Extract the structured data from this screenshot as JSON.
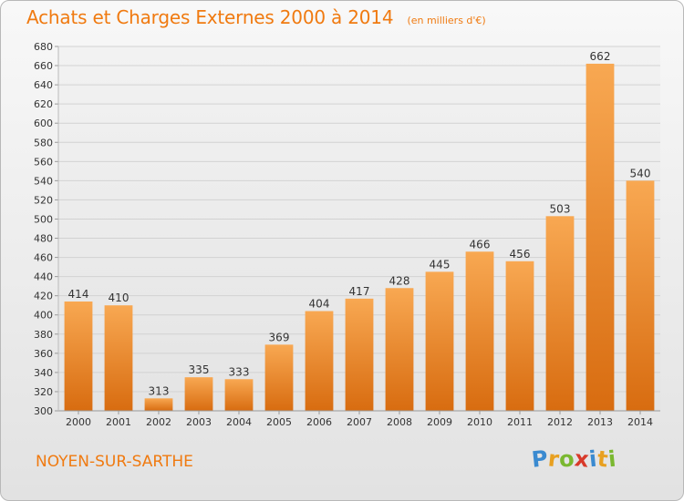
{
  "chart_data": {
    "type": "bar",
    "title": "Achats et Charges Externes 2000 à 2014",
    "subtitle": "(en milliers d'€)",
    "categories": [
      "2000",
      "2001",
      "2002",
      "2003",
      "2004",
      "2005",
      "2006",
      "2007",
      "2008",
      "2009",
      "2010",
      "2011",
      "2012",
      "2013",
      "2014"
    ],
    "values": [
      414,
      410,
      313,
      335,
      333,
      369,
      404,
      417,
      428,
      445,
      466,
      456,
      503,
      662,
      540
    ],
    "ylim": [
      300,
      680
    ],
    "yticks": [
      300,
      320,
      340,
      360,
      380,
      400,
      420,
      440,
      460,
      480,
      500,
      520,
      540,
      560,
      580,
      600,
      620,
      640,
      660,
      680
    ],
    "xlabel": "",
    "ylabel": "",
    "grid": true,
    "bar_color": "#f08c2a"
  },
  "footer": {
    "place": "NOYEN-SUR-SARTHE",
    "logo_letters": [
      {
        "char": "P",
        "color": "#3a8ad0"
      },
      {
        "char": "r",
        "color": "#e8a020"
      },
      {
        "char": "o",
        "color": "#7ab830"
      },
      {
        "char": "x",
        "color": "#d83a2a"
      },
      {
        "char": "i",
        "color": "#3a8ad0"
      },
      {
        "char": "t",
        "color": "#e8a020"
      },
      {
        "char": "i",
        "color": "#7ab830"
      }
    ]
  }
}
